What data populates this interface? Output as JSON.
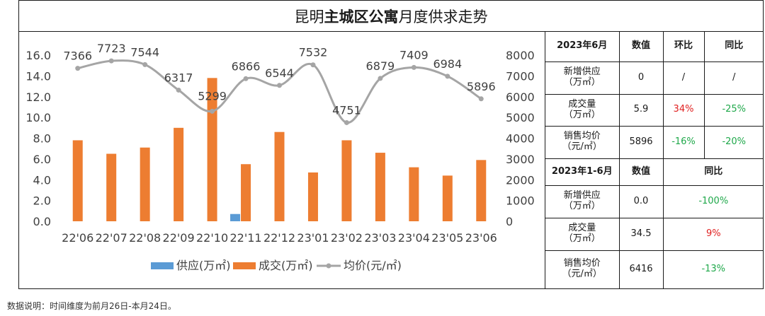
{
  "title": {
    "prefix": "昆明",
    "bold": "主城区公寓",
    "suffix": "月度供求走势"
  },
  "chart_data": {
    "type": "bar",
    "categories": [
      "22'06",
      "22'07",
      "22'08",
      "22'09",
      "22'10",
      "22'11",
      "22'12",
      "23'01",
      "23'02",
      "23'03",
      "23'04",
      "23'05",
      "23'06"
    ],
    "series": [
      {
        "name": "供应(万㎡)",
        "type": "bar",
        "axis": "left",
        "color": "#5b9bd5",
        "values": [
          0,
          0,
          0,
          0,
          0,
          0.7,
          0,
          0,
          0,
          0,
          0,
          0,
          0
        ]
      },
      {
        "name": "成交(万㎡)",
        "type": "bar",
        "axis": "left",
        "color": "#ed7d31",
        "values": [
          7.8,
          6.5,
          7.1,
          9.0,
          13.8,
          5.5,
          8.6,
          4.7,
          7.8,
          6.6,
          5.2,
          4.4,
          5.9
        ]
      },
      {
        "name": "均价(元/㎡)",
        "type": "line",
        "axis": "right",
        "color": "#a5a5a5",
        "values": [
          7366,
          7723,
          7544,
          6317,
          5299,
          6866,
          6544,
          7532,
          4751,
          6879,
          7409,
          6984,
          5896
        ],
        "labels": [
          "7366",
          "7723",
          "7544",
          "6317",
          "5299",
          "6866",
          "6544",
          "7532",
          "4751",
          "6879",
          "7409",
          "6984",
          "5896"
        ]
      }
    ],
    "left_axis": {
      "min": 0,
      "max": 16,
      "ticks": [
        "0.0",
        "2.0",
        "4.0",
        "6.0",
        "8.0",
        "10.0",
        "12.0",
        "14.0",
        "16.0"
      ]
    },
    "right_axis": {
      "min": 0,
      "max": 8000,
      "ticks": [
        "0",
        "1000",
        "2000",
        "3000",
        "4000",
        "5000",
        "6000",
        "7000",
        "8000"
      ]
    },
    "legend": {
      "position": "bottom",
      "items": [
        "供应(万㎡)",
        "成交(万㎡)",
        "均价(元/㎡)"
      ]
    }
  },
  "table": {
    "head1": [
      "2023年6月",
      "数值",
      "环比",
      "同比"
    ],
    "monthly": [
      {
        "label1": "新增供应",
        "label2": "（万㎡）",
        "value": "0",
        "mom": "/",
        "yoy": "/",
        "mom_color": "",
        "yoy_color": ""
      },
      {
        "label1": "成交量",
        "label2": "（万㎡）",
        "value": "5.9",
        "mom": "34%",
        "yoy": "-25%",
        "mom_color": "red",
        "yoy_color": "green"
      },
      {
        "label1": "销售均价",
        "label2": "（元/㎡）",
        "value": "5896",
        "mom": "-16%",
        "yoy": "-20%",
        "mom_color": "green",
        "yoy_color": "green"
      }
    ],
    "head2": [
      "2023年1-6月",
      "数值",
      "同比"
    ],
    "cumulative": [
      {
        "label1": "新增供应",
        "label2": "（万㎡）",
        "value": "0.0",
        "yoy": "-100%",
        "yoy_color": "green"
      },
      {
        "label1": "成交量",
        "label2": "（万㎡）",
        "value": "34.5",
        "yoy": "9%",
        "yoy_color": "red"
      },
      {
        "label1": "销售均价",
        "label2": "（元/㎡）",
        "value": "6416",
        "yoy": "-13%",
        "yoy_color": "green"
      }
    ]
  },
  "note": "数据说明：时间维度为前月26日-本月24日。"
}
